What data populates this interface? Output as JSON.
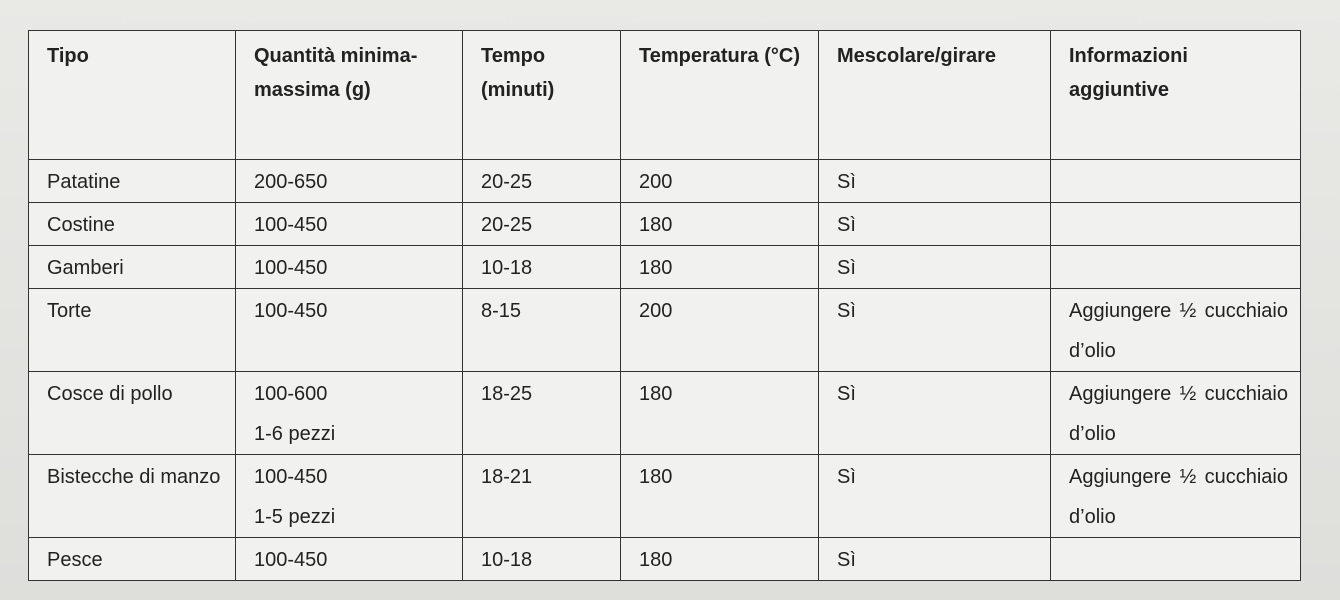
{
  "table": {
    "header": [
      "Tipo",
      "Quantità minima-massima (g)",
      "Tempo (minuti)",
      "Temperatura (°C)",
      "Mescolare/girare",
      "Informazioni aggiuntive"
    ],
    "rows": [
      [
        "Patatine",
        "200-650",
        "20-25",
        "200",
        "Sì",
        null
      ],
      [
        "Costine",
        "100-450",
        "20-25",
        "180",
        "Sì",
        null
      ],
      [
        "Gamberi",
        "100-450",
        "10-18",
        "180",
        "Sì",
        null
      ],
      [
        "Torte",
        "100-450",
        "8-15",
        "200",
        "Sì",
        "Aggiungere ½ cucchiaio d’olio"
      ],
      [
        "Cosce di pollo",
        "100-600\n1-6 pezzi",
        "18-25",
        "180",
        "Sì",
        "Aggiungere ½ cucchiaio d’olio"
      ],
      [
        "Bistecche di manzo",
        "100-450\n1-5 pezzi",
        "18-21",
        "180",
        "Sì",
        "Aggiungere ½ cucchiaio d’olio"
      ],
      [
        "Pesce",
        "100-450",
        "10-18",
        "180",
        "Sì",
        null
      ]
    ]
  }
}
